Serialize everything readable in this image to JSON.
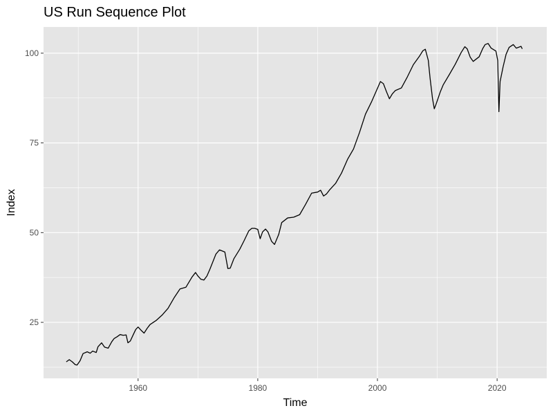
{
  "chart_data": {
    "type": "line",
    "title": "US Run Sequence Plot",
    "xlabel": "Time",
    "ylabel": "Index",
    "xlim": [
      1944.2,
      2028.3
    ],
    "ylim": [
      9.4,
      107.3
    ],
    "x_ticks": [
      1960,
      1980,
      2000,
      2020
    ],
    "y_ticks": [
      25,
      50,
      75,
      100
    ],
    "x_minor": [
      1950,
      1970,
      1990,
      2010
    ],
    "y_minor": [
      12.5,
      37.5,
      62.5,
      87.5
    ],
    "colors": {
      "panel": "#E5E5E5",
      "grid": "#FFFFFF",
      "line": "#000000",
      "tick_text": "#4D4D4D"
    },
    "grid": true,
    "legend": "none",
    "series": [
      {
        "values": [
          [
            1948.0,
            14.0
          ],
          [
            1948.5,
            14.6
          ],
          [
            1949.0,
            14.0
          ],
          [
            1949.5,
            13.2
          ],
          [
            1949.8,
            13.1
          ],
          [
            1950.3,
            14.3
          ],
          [
            1950.8,
            16.3
          ],
          [
            1951.5,
            16.8
          ],
          [
            1952.0,
            16.4
          ],
          [
            1952.4,
            17.0
          ],
          [
            1953.0,
            16.6
          ],
          [
            1953.3,
            18.2
          ],
          [
            1953.9,
            19.3
          ],
          [
            1954.4,
            18.1
          ],
          [
            1955.0,
            17.8
          ],
          [
            1955.6,
            19.6
          ],
          [
            1956.0,
            20.5
          ],
          [
            1956.5,
            21.0
          ],
          [
            1957.0,
            21.6
          ],
          [
            1957.5,
            21.4
          ],
          [
            1958.0,
            21.5
          ],
          [
            1958.3,
            19.3
          ],
          [
            1958.7,
            19.8
          ],
          [
            1959.2,
            21.6
          ],
          [
            1959.6,
            23.0
          ],
          [
            1960.0,
            23.7
          ],
          [
            1960.5,
            22.8
          ],
          [
            1961.0,
            22.0
          ],
          [
            1961.5,
            23.3
          ],
          [
            1962.0,
            24.4
          ],
          [
            1963.0,
            25.5
          ],
          [
            1964.0,
            27.0
          ],
          [
            1965.0,
            28.9
          ],
          [
            1966.0,
            31.8
          ],
          [
            1967.0,
            34.3
          ],
          [
            1967.6,
            34.6
          ],
          [
            1968.0,
            34.8
          ],
          [
            1969.0,
            37.6
          ],
          [
            1969.6,
            38.9
          ],
          [
            1970.0,
            37.9
          ],
          [
            1970.5,
            37.0
          ],
          [
            1971.0,
            36.8
          ],
          [
            1971.5,
            37.9
          ],
          [
            1972.0,
            39.8
          ],
          [
            1973.0,
            44.0
          ],
          [
            1973.6,
            45.2
          ],
          [
            1974.5,
            44.6
          ],
          [
            1975.0,
            40.0
          ],
          [
            1975.4,
            40.1
          ],
          [
            1976.0,
            42.7
          ],
          [
            1977.0,
            45.4
          ],
          [
            1977.7,
            47.7
          ],
          [
            1978.5,
            50.5
          ],
          [
            1979.0,
            51.2
          ],
          [
            1979.5,
            51.2
          ],
          [
            1980.0,
            50.9
          ],
          [
            1980.4,
            48.3
          ],
          [
            1980.8,
            50.2
          ],
          [
            1981.3,
            51.0
          ],
          [
            1981.7,
            50.2
          ],
          [
            1982.3,
            47.6
          ],
          [
            1982.8,
            46.7
          ],
          [
            1983.5,
            49.5
          ],
          [
            1984.0,
            52.8
          ],
          [
            1985.0,
            54.1
          ],
          [
            1986.0,
            54.3
          ],
          [
            1987.0,
            55.0
          ],
          [
            1988.0,
            57.9
          ],
          [
            1989.0,
            61.0
          ],
          [
            1990.0,
            61.3
          ],
          [
            1990.5,
            61.8
          ],
          [
            1991.0,
            60.2
          ],
          [
            1991.5,
            60.8
          ],
          [
            1992.0,
            61.9
          ],
          [
            1993.0,
            63.7
          ],
          [
            1994.0,
            66.6
          ],
          [
            1995.0,
            70.4
          ],
          [
            1996.0,
            73.3
          ],
          [
            1997.0,
            77.9
          ],
          [
            1998.0,
            83.0
          ],
          [
            1999.0,
            86.4
          ],
          [
            2000.0,
            90.2
          ],
          [
            2000.5,
            92.1
          ],
          [
            2001.0,
            91.5
          ],
          [
            2001.5,
            89.3
          ],
          [
            2002.0,
            87.3
          ],
          [
            2002.5,
            88.7
          ],
          [
            2003.0,
            89.6
          ],
          [
            2004.0,
            90.3
          ],
          [
            2005.0,
            93.4
          ],
          [
            2006.0,
            96.8
          ],
          [
            2007.0,
            99.1
          ],
          [
            2007.6,
            100.7
          ],
          [
            2008.0,
            101.1
          ],
          [
            2008.5,
            98.0
          ],
          [
            2008.8,
            93.0
          ],
          [
            2009.2,
            87.4
          ],
          [
            2009.5,
            84.5
          ],
          [
            2009.8,
            85.8
          ],
          [
            2010.5,
            89.2
          ],
          [
            2011.0,
            91.2
          ],
          [
            2012.0,
            94.0
          ],
          [
            2013.0,
            96.9
          ],
          [
            2014.0,
            100.2
          ],
          [
            2014.6,
            101.8
          ],
          [
            2015.0,
            101.2
          ],
          [
            2015.5,
            98.9
          ],
          [
            2016.0,
            97.7
          ],
          [
            2017.0,
            99.0
          ],
          [
            2017.6,
            101.3
          ],
          [
            2018.0,
            102.4
          ],
          [
            2018.5,
            102.7
          ],
          [
            2019.0,
            101.4
          ],
          [
            2019.8,
            100.6
          ],
          [
            2020.1,
            98.0
          ],
          [
            2020.3,
            83.7
          ],
          [
            2020.5,
            92.1
          ],
          [
            2021.0,
            96.2
          ],
          [
            2021.5,
            99.7
          ],
          [
            2022.0,
            101.6
          ],
          [
            2022.7,
            102.4
          ],
          [
            2023.2,
            101.4
          ],
          [
            2024.0,
            101.9
          ],
          [
            2024.2,
            101.2
          ]
        ]
      }
    ]
  }
}
